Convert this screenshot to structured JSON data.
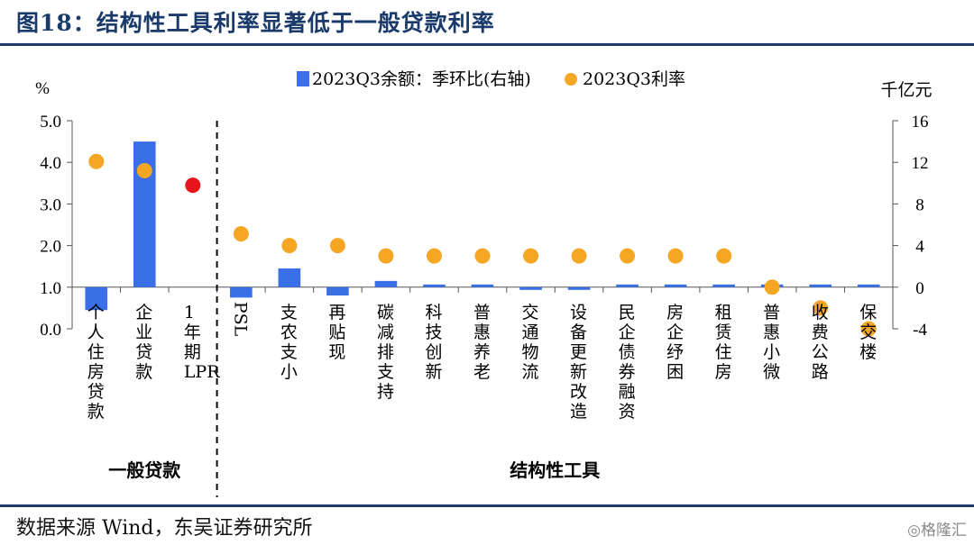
{
  "title": "图18：结构性工具利率显著低于一般贷款利率",
  "source": "数据来源 Wind，东吴证券研究所",
  "watermark": "格隆汇",
  "chart_data": {
    "type": "bar",
    "left_axis": {
      "unit": "%",
      "ylim": [
        0,
        5
      ],
      "ticks": [
        "5.0",
        "4.0",
        "3.0",
        "2.0",
        "1.0",
        "0.0"
      ]
    },
    "right_axis": {
      "unit": "千亿元",
      "ylim": [
        -4,
        16
      ],
      "ticks": [
        "16",
        "12",
        "8",
        "4",
        "0",
        "-4"
      ]
    },
    "categories": [
      "个人住房贷款",
      "企业贷款",
      "1年期LPR",
      "PSL",
      "支农支小",
      "再贴现",
      "碳减排支持",
      "科技创新",
      "普惠养老",
      "交通物流",
      "设备更新改造",
      "民企债券融资",
      "房企纾困",
      "租赁住房",
      "普惠小微",
      "收费公路",
      "保交楼"
    ],
    "groups": [
      {
        "label": "一般贷款",
        "categories": [
          "个人住房贷款",
          "企业贷款",
          "1年期LPR"
        ]
      },
      {
        "label": "结构性工具",
        "categories": [
          "PSL",
          "支农支小",
          "再贴现",
          "碳减排支持",
          "科技创新",
          "普惠养老",
          "交通物流",
          "设备更新改造",
          "民企债券融资",
          "房企纾困",
          "租赁住房",
          "普惠小微",
          "收费公路",
          "保交楼"
        ]
      }
    ],
    "series": [
      {
        "name": "2023Q3余额：季环比(右轴)",
        "type": "bar",
        "axis": "right",
        "color": "#3a6fe8",
        "values": [
          -2.2,
          14.0,
          null,
          -1.0,
          1.8,
          -0.8,
          0.6,
          0.2,
          0.05,
          -0.1,
          -0.1,
          0,
          0,
          0,
          0.1,
          0.1,
          0.1
        ]
      },
      {
        "name": "2023Q3利率",
        "type": "scatter",
        "axis": "left",
        "color": "#f5a623",
        "values": [
          4.02,
          3.8,
          3.45,
          2.28,
          2.0,
          2.0,
          1.75,
          1.75,
          1.75,
          1.75,
          1.75,
          1.75,
          1.75,
          1.75,
          1.0,
          0.5,
          0.0
        ]
      }
    ],
    "highlight": {
      "category": "1年期LPR",
      "color": "#e8141b"
    },
    "divider_after": "1年期LPR"
  }
}
